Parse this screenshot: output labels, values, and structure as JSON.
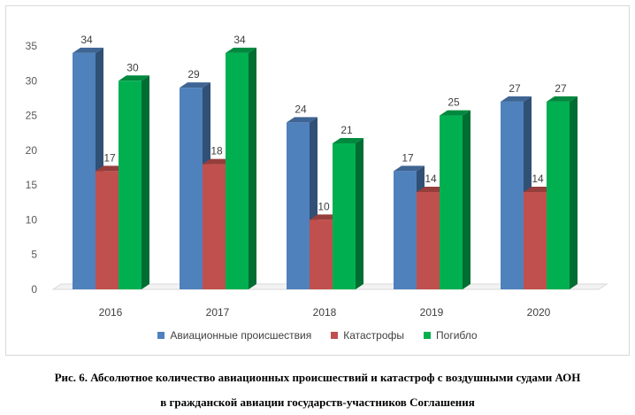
{
  "chart_data": {
    "type": "bar",
    "categories": [
      "2016",
      "2017",
      "2018",
      "2019",
      "2020"
    ],
    "series": [
      {
        "name": "Авиационные происшествия",
        "values": [
          34,
          29,
          24,
          17,
          27
        ],
        "color": "#4f81bd"
      },
      {
        "name": "Катастрофы",
        "values": [
          17,
          18,
          10,
          14,
          14
        ],
        "color": "#c0504d"
      },
      {
        "name": "Погибло",
        "values": [
          30,
          34,
          21,
          25,
          27
        ],
        "color": "#00b050"
      }
    ],
    "ylim": [
      0,
      35
    ],
    "yticks": [
      "0",
      "5",
      "10",
      "15",
      "20",
      "25",
      "30",
      "35"
    ],
    "grid": false,
    "legend_position": "bottom",
    "style": "3d-clustered-column"
  },
  "caption": {
    "line1": "Рис. 6. Абсолютное количество авиационных происшествий и катастроф с воздушными судами АОН",
    "line2": "в гражданской авиации государств-участников Соглашения"
  }
}
